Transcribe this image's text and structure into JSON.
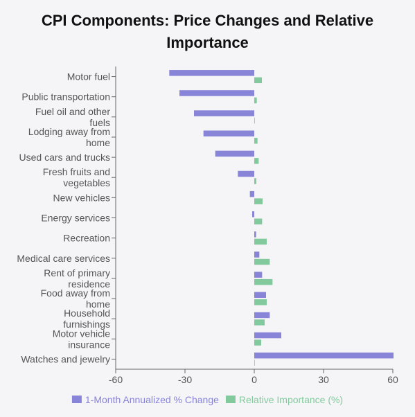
{
  "chart_data": {
    "type": "bar",
    "orientation": "horizontal",
    "title": "CPI Components: Price Changes and Relative Importance",
    "title_lines": [
      "CPI Components: Price Changes and Relative",
      "Importance"
    ],
    "categories": [
      "Motor fuel",
      "Public transportation",
      "Fuel oil and other fuels",
      "Lodging away from home",
      "Used cars and trucks",
      "Fresh fruits and vegetables",
      "New vehicles",
      "Energy services",
      "Recreation",
      "Medical care services",
      "Rent of primary residence",
      "Food away from home",
      "Household furnishings",
      "Motor vehicle insurance",
      "Watches and jewelry"
    ],
    "category_lines": [
      [
        "Motor fuel"
      ],
      [
        "Public transportation"
      ],
      [
        "Fuel oil and other",
        "fuels"
      ],
      [
        "Lodging away from",
        "home"
      ],
      [
        "Used cars and trucks"
      ],
      [
        "Fresh fruits and",
        "vegetables"
      ],
      [
        "New vehicles"
      ],
      [
        "Energy services"
      ],
      [
        "Recreation"
      ],
      [
        "Medical care services"
      ],
      [
        "Rent of primary",
        "residence"
      ],
      [
        "Food away from",
        "home"
      ],
      [
        "Household",
        "furnishings"
      ],
      [
        "Motor vehicle",
        "insurance"
      ],
      [
        "Watches and jewelry"
      ]
    ],
    "series": [
      {
        "name": "1-Month Annualized % Change",
        "color": "#8884d8",
        "values": [
          -36.8,
          -32.4,
          -26.1,
          -22.0,
          -16.9,
          -7.1,
          -1.9,
          -0.9,
          0.8,
          2.2,
          3.4,
          5.1,
          6.7,
          11.7,
          60.3
        ]
      },
      {
        "name": "Relative Importance (%)",
        "color": "#82ca9d",
        "values": [
          3.3,
          1.1,
          0.2,
          1.4,
          1.9,
          0.9,
          3.6,
          3.4,
          5.4,
          6.7,
          7.9,
          5.4,
          4.5,
          3.0,
          0.2
        ]
      }
    ],
    "xlim": [
      -60,
      60
    ],
    "xticks": [
      "-60",
      "-30",
      "0",
      "30",
      "60"
    ],
    "legend_position": "bottom",
    "grid": false
  }
}
